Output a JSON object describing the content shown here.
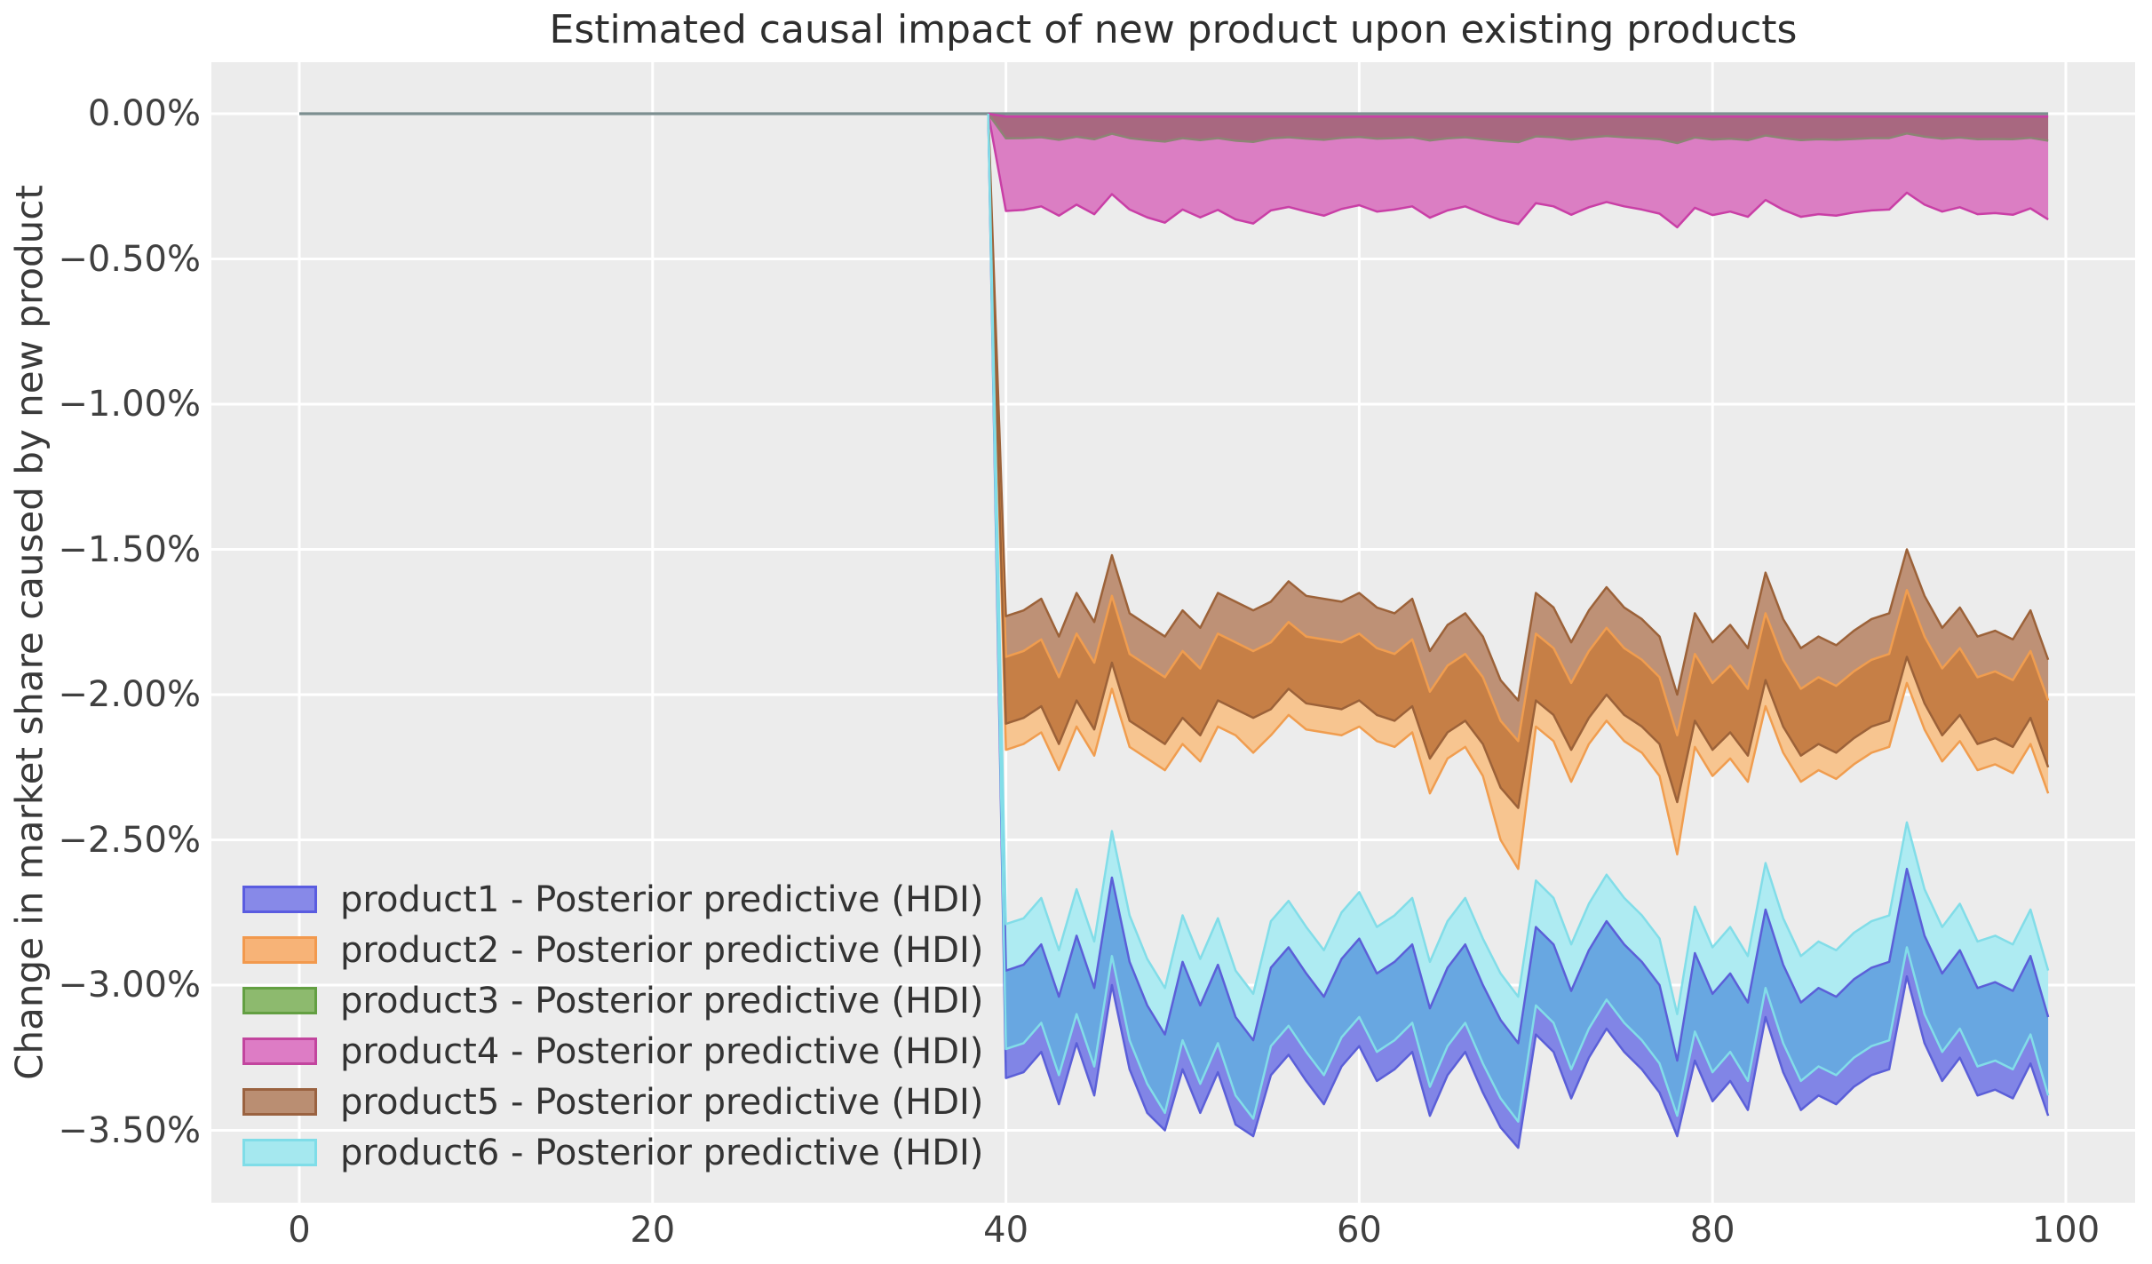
{
  "title": "Estimated causal impact of new product upon existing products",
  "colors": {
    "figure_bg": "#FFFFFF",
    "plot_bg": "#ECECEC",
    "grid": "#FFFFFF",
    "zero_line": "#7C8E90",
    "title_text": "#2E2E2E",
    "tick_text": "#404040",
    "overlap_blue_cyan": "#68A7E1",
    "overlap_orange_brown": "#C67F46",
    "band3_composite": "#A86880"
  },
  "axes": {
    "x_ticks": [
      {
        "v": 0,
        "label": "0"
      },
      {
        "v": 20,
        "label": "20"
      },
      {
        "v": 40,
        "label": "40"
      },
      {
        "v": 60,
        "label": "60"
      },
      {
        "v": 80,
        "label": "80"
      },
      {
        "v": 100,
        "label": "100"
      }
    ],
    "y_ticks": [
      {
        "v": 0.0,
        "label": "0.00%"
      },
      {
        "v": -0.5,
        "label": "−0.50%"
      },
      {
        "v": -1.0,
        "label": "−1.00%"
      },
      {
        "v": -1.5,
        "label": "−1.50%"
      },
      {
        "v": -2.0,
        "label": "−2.00%"
      },
      {
        "v": -2.5,
        "label": "−2.50%"
      },
      {
        "v": -3.0,
        "label": "−3.00%"
      },
      {
        "v": -3.5,
        "label": "−3.50%"
      }
    ]
  },
  "chart_data": {
    "type": "area",
    "title": "Estimated causal impact of new product upon existing products",
    "xlabel": "",
    "ylabel": "Change in market share caused by new product",
    "grid": true,
    "legend_position": "lower left",
    "x_axis_range": [
      -4.95,
      103.95
    ],
    "y_axis_range_pct": [
      -3.75,
      0.18
    ],
    "pre_period": {
      "x_start": 0,
      "x_end": 39,
      "value_pct": 0.0
    },
    "treatment_x": 40,
    "x": [
      40,
      41,
      42,
      43,
      44,
      45,
      46,
      47,
      48,
      49,
      50,
      51,
      52,
      53,
      54,
      55,
      56,
      57,
      58,
      59,
      60,
      61,
      62,
      63,
      64,
      65,
      66,
      67,
      68,
      69,
      70,
      71,
      72,
      73,
      74,
      75,
      76,
      77,
      78,
      79,
      80,
      81,
      82,
      83,
      84,
      85,
      86,
      87,
      88,
      89,
      90,
      91,
      92,
      93,
      94,
      95,
      96,
      97,
      98,
      99
    ],
    "series": [
      {
        "id": "product1",
        "legend_label": "product1 - Posterior predictive (HDI)",
        "edge_color": "#5B5FD8",
        "fill_color": "#8185E6",
        "legend_fill": "#8789E8",
        "legend_edge": "#5A5CE0",
        "hdi_upper_pct": [
          -2.95,
          -2.93,
          -2.86,
          -3.04,
          -2.83,
          -3.01,
          -2.63,
          -2.92,
          -3.07,
          -3.17,
          -2.92,
          -3.07,
          -2.93,
          -3.11,
          -3.19,
          -2.94,
          -2.87,
          -2.96,
          -3.04,
          -2.91,
          -2.84,
          -2.96,
          -2.92,
          -2.86,
          -3.08,
          -2.94,
          -2.86,
          -3.0,
          -3.12,
          -3.2,
          -2.8,
          -2.86,
          -3.02,
          -2.88,
          -2.78,
          -2.86,
          -2.92,
          -3.0,
          -3.26,
          -2.89,
          -3.03,
          -2.96,
          -3.06,
          -2.74,
          -2.93,
          -3.06,
          -3.01,
          -3.04,
          -2.98,
          -2.94,
          -2.92,
          -2.6,
          -2.83,
          -2.96,
          -2.88,
          -3.01,
          -2.99,
          -3.02,
          -2.9,
          -3.11
        ],
        "hdi_lower_pct": [
          -3.32,
          -3.3,
          -3.23,
          -3.41,
          -3.2,
          -3.38,
          -3.0,
          -3.29,
          -3.44,
          -3.5,
          -3.29,
          -3.44,
          -3.3,
          -3.48,
          -3.52,
          -3.31,
          -3.24,
          -3.33,
          -3.41,
          -3.28,
          -3.21,
          -3.33,
          -3.29,
          -3.23,
          -3.45,
          -3.31,
          -3.23,
          -3.37,
          -3.49,
          -3.56,
          -3.17,
          -3.23,
          -3.39,
          -3.25,
          -3.15,
          -3.23,
          -3.29,
          -3.37,
          -3.52,
          -3.26,
          -3.4,
          -3.33,
          -3.43,
          -3.11,
          -3.3,
          -3.43,
          -3.38,
          -3.41,
          -3.35,
          -3.31,
          -3.29,
          -2.97,
          -3.2,
          -3.33,
          -3.25,
          -3.38,
          -3.36,
          -3.39,
          -3.27,
          -3.45
        ]
      },
      {
        "id": "product2",
        "legend_label": "product2 - Posterior predictive (HDI)",
        "edge_color": "#F09D4F",
        "fill_color": "#F7C590",
        "legend_fill": "#F7B377",
        "legend_edge": "#F2994D",
        "hdi_upper_pct": [
          -1.87,
          -1.85,
          -1.81,
          -1.94,
          -1.79,
          -1.89,
          -1.66,
          -1.86,
          -1.9,
          -1.94,
          -1.85,
          -1.91,
          -1.79,
          -1.82,
          -1.85,
          -1.82,
          -1.75,
          -1.8,
          -1.81,
          -1.82,
          -1.79,
          -1.84,
          -1.86,
          -1.81,
          -1.99,
          -1.9,
          -1.86,
          -1.94,
          -2.09,
          -2.16,
          -1.79,
          -1.84,
          -1.96,
          -1.85,
          -1.77,
          -1.84,
          -1.88,
          -1.94,
          -2.14,
          -1.86,
          -1.96,
          -1.9,
          -1.98,
          -1.72,
          -1.88,
          -1.98,
          -1.94,
          -1.97,
          -1.92,
          -1.88,
          -1.86,
          -1.64,
          -1.8,
          -1.91,
          -1.84,
          -1.94,
          -1.92,
          -1.95,
          -1.85,
          -2.02
        ],
        "hdi_lower_pct": [
          -2.19,
          -2.17,
          -2.13,
          -2.26,
          -2.11,
          -2.21,
          -1.98,
          -2.18,
          -2.22,
          -2.26,
          -2.17,
          -2.23,
          -2.11,
          -2.14,
          -2.2,
          -2.14,
          -2.07,
          -2.12,
          -2.13,
          -2.14,
          -2.11,
          -2.16,
          -2.18,
          -2.13,
          -2.34,
          -2.22,
          -2.18,
          -2.28,
          -2.5,
          -2.6,
          -2.11,
          -2.16,
          -2.3,
          -2.17,
          -2.09,
          -2.16,
          -2.2,
          -2.28,
          -2.55,
          -2.18,
          -2.28,
          -2.22,
          -2.3,
          -2.04,
          -2.2,
          -2.3,
          -2.26,
          -2.29,
          -2.24,
          -2.2,
          -2.18,
          -1.96,
          -2.12,
          -2.23,
          -2.16,
          -2.26,
          -2.24,
          -2.27,
          -2.17,
          -2.34
        ]
      },
      {
        "id": "product3",
        "legend_label": "product3 - Posterior predictive (HDI)",
        "edge_color": "#8C8574",
        "fill_color": "#A86880",
        "legend_fill": "#8DBA6E",
        "legend_edge": "#639F42",
        "hdi_upper_pct": -0.005,
        "hdi_lower_pct": [
          -0.085,
          -0.084,
          -0.081,
          -0.09,
          -0.079,
          -0.088,
          -0.069,
          -0.084,
          -0.091,
          -0.096,
          -0.084,
          -0.091,
          -0.084,
          -0.093,
          -0.097,
          -0.085,
          -0.081,
          -0.086,
          -0.09,
          -0.083,
          -0.08,
          -0.086,
          -0.084,
          -0.081,
          -0.092,
          -0.085,
          -0.081,
          -0.088,
          -0.094,
          -0.098,
          -0.078,
          -0.081,
          -0.089,
          -0.082,
          -0.077,
          -0.081,
          -0.084,
          -0.088,
          -0.101,
          -0.082,
          -0.089,
          -0.086,
          -0.091,
          -0.075,
          -0.084,
          -0.091,
          -0.088,
          -0.09,
          -0.087,
          -0.084,
          -0.084,
          -0.068,
          -0.079,
          -0.086,
          -0.082,
          -0.088,
          -0.087,
          -0.088,
          -0.083,
          -0.093
        ]
      },
      {
        "id": "product4",
        "legend_label": "product4 - Posterior predictive (HDI)",
        "edge_color": "#C93FA6",
        "fill_color": "#DB7EC3",
        "legend_fill": "#DD7CC5",
        "legend_edge": "#C2459E",
        "hdi_upper_pct": -0.01,
        "hdi_lower_pct": [
          -0.335,
          -0.331,
          -0.319,
          -0.351,
          -0.313,
          -0.346,
          -0.277,
          -0.33,
          -0.357,
          -0.375,
          -0.33,
          -0.357,
          -0.331,
          -0.364,
          -0.378,
          -0.333,
          -0.321,
          -0.337,
          -0.351,
          -0.328,
          -0.315,
          -0.337,
          -0.33,
          -0.319,
          -0.358,
          -0.333,
          -0.319,
          -0.344,
          -0.366,
          -0.38,
          -0.308,
          -0.319,
          -0.348,
          -0.322,
          -0.304,
          -0.319,
          -0.33,
          -0.344,
          -0.391,
          -0.324,
          -0.349,
          -0.337,
          -0.355,
          -0.297,
          -0.331,
          -0.355,
          -0.346,
          -0.351,
          -0.34,
          -0.333,
          -0.33,
          -0.272,
          -0.313,
          -0.337,
          -0.322,
          -0.346,
          -0.342,
          -0.348,
          -0.326,
          -0.364
        ]
      },
      {
        "id": "product5",
        "legend_label": "product5 - Posterior predictive (HDI)",
        "edge_color": "#9C6239",
        "fill_color": "#BE9176",
        "legend_fill": "#BA8E72",
        "legend_edge": "#9A6240",
        "hdi_upper_pct": [
          -1.73,
          -1.71,
          -1.67,
          -1.8,
          -1.65,
          -1.75,
          -1.52,
          -1.72,
          -1.76,
          -1.8,
          -1.71,
          -1.77,
          -1.65,
          -1.68,
          -1.71,
          -1.68,
          -1.61,
          -1.66,
          -1.67,
          -1.68,
          -1.65,
          -1.7,
          -1.72,
          -1.67,
          -1.85,
          -1.76,
          -1.72,
          -1.8,
          -1.95,
          -2.02,
          -1.65,
          -1.7,
          -1.82,
          -1.71,
          -1.63,
          -1.7,
          -1.74,
          -1.8,
          -2.0,
          -1.72,
          -1.82,
          -1.76,
          -1.84,
          -1.58,
          -1.74,
          -1.84,
          -1.8,
          -1.83,
          -1.78,
          -1.74,
          -1.72,
          -1.5,
          -1.66,
          -1.77,
          -1.7,
          -1.8,
          -1.78,
          -1.81,
          -1.71,
          -1.88
        ],
        "hdi_lower_pct": [
          -2.1,
          -2.08,
          -2.04,
          -2.17,
          -2.02,
          -2.12,
          -1.89,
          -2.09,
          -2.13,
          -2.17,
          -2.08,
          -2.14,
          -2.02,
          -2.05,
          -2.08,
          -2.05,
          -1.98,
          -2.03,
          -2.04,
          -2.05,
          -2.02,
          -2.07,
          -2.09,
          -2.04,
          -2.22,
          -2.13,
          -2.09,
          -2.17,
          -2.32,
          -2.39,
          -2.02,
          -2.07,
          -2.19,
          -2.08,
          -2.0,
          -2.07,
          -2.11,
          -2.17,
          -2.37,
          -2.09,
          -2.19,
          -2.13,
          -2.21,
          -1.95,
          -2.11,
          -2.21,
          -2.17,
          -2.2,
          -2.15,
          -2.11,
          -2.09,
          -1.87,
          -2.03,
          -2.14,
          -2.07,
          -2.17,
          -2.15,
          -2.18,
          -2.08,
          -2.25
        ]
      },
      {
        "id": "product6",
        "legend_label": "product6 - Posterior predictive (HDI)",
        "edge_color": "#82DDE8",
        "fill_color": "#AEEBF2",
        "legend_fill": "#A5E8EF",
        "legend_edge": "#7FDDE8",
        "hdi_upper_pct": [
          -2.79,
          -2.77,
          -2.7,
          -2.88,
          -2.67,
          -2.85,
          -2.47,
          -2.76,
          -2.91,
          -3.01,
          -2.76,
          -2.91,
          -2.77,
          -2.95,
          -3.03,
          -2.78,
          -2.71,
          -2.8,
          -2.88,
          -2.75,
          -2.68,
          -2.8,
          -2.76,
          -2.7,
          -2.92,
          -2.78,
          -2.7,
          -2.84,
          -2.96,
          -3.04,
          -2.64,
          -2.7,
          -2.86,
          -2.72,
          -2.62,
          -2.7,
          -2.76,
          -2.84,
          -3.1,
          -2.73,
          -2.87,
          -2.8,
          -2.9,
          -2.58,
          -2.77,
          -2.9,
          -2.85,
          -2.88,
          -2.82,
          -2.78,
          -2.76,
          -2.44,
          -2.67,
          -2.8,
          -2.72,
          -2.85,
          -2.83,
          -2.86,
          -2.74,
          -2.95
        ],
        "hdi_lower_pct": [
          -3.22,
          -3.2,
          -3.13,
          -3.31,
          -3.1,
          -3.28,
          -2.9,
          -3.19,
          -3.34,
          -3.44,
          -3.19,
          -3.34,
          -3.2,
          -3.38,
          -3.46,
          -3.21,
          -3.14,
          -3.23,
          -3.31,
          -3.18,
          -3.11,
          -3.23,
          -3.19,
          -3.13,
          -3.35,
          -3.21,
          -3.13,
          -3.27,
          -3.39,
          -3.47,
          -3.07,
          -3.13,
          -3.29,
          -3.15,
          -3.05,
          -3.13,
          -3.19,
          -3.27,
          -3.45,
          -3.16,
          -3.3,
          -3.23,
          -3.33,
          -3.01,
          -3.2,
          -3.33,
          -3.28,
          -3.31,
          -3.25,
          -3.21,
          -3.19,
          -2.87,
          -3.1,
          -3.23,
          -3.15,
          -3.28,
          -3.26,
          -3.29,
          -3.17,
          -3.38
        ]
      }
    ]
  }
}
